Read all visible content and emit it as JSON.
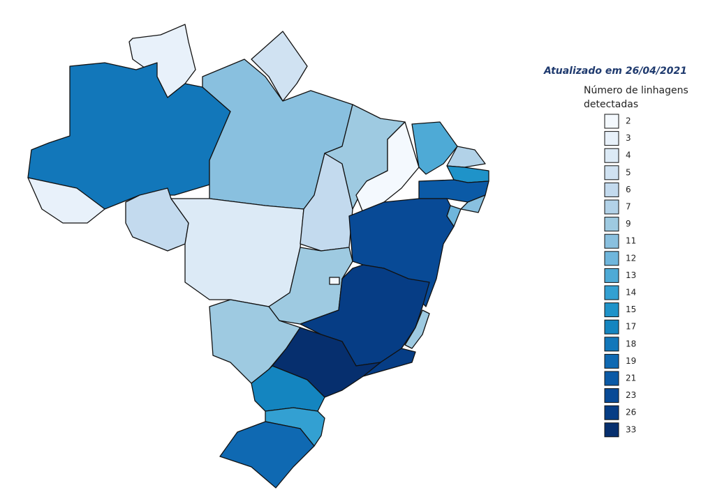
{
  "map": {
    "updated": "Atualizado em 26/04/2021",
    "legend_title": "Número de linhagens detectadas",
    "legend": {
      "values": [
        2,
        3,
        4,
        5,
        6,
        7,
        9,
        11,
        12,
        13,
        14,
        15,
        17,
        18,
        19,
        21,
        23,
        26,
        33
      ],
      "colors": [
        "#f4f9fe",
        "#e8f1fa",
        "#dceaf6",
        "#d0e2f2",
        "#c3daee",
        "#b2d2e8",
        "#9ecae1",
        "#89c0df",
        "#6fb6dc",
        "#4eaad6",
        "#33a0d2",
        "#1f93c9",
        "#1485c0",
        "#1277ba",
        "#0f69b2",
        "#0b5aa6",
        "#084a96",
        "#063d85",
        "#062f6e"
      ]
    },
    "regions": [
      3,
      5,
      18,
      3,
      11,
      6,
      4,
      6,
      9,
      2,
      13,
      7,
      15,
      21,
      11,
      12,
      23,
      9,
      2,
      9,
      26,
      9,
      26,
      33,
      17,
      14,
      19
    ]
  }
}
